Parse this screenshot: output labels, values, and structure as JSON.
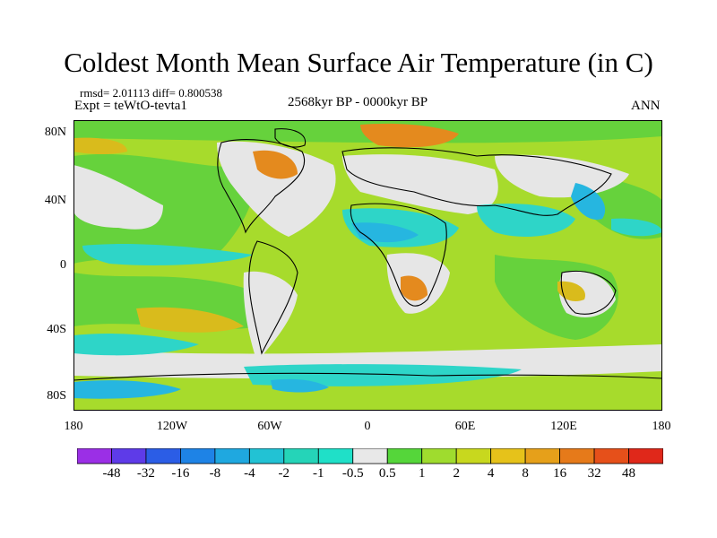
{
  "title": "Coldest Month Mean Surface Air Temperature (in C)",
  "stats": "rmsd= 2.01113 diff= 0.800538",
  "experiment": "Expt = teWtO-tevta1",
  "period": "2568kyr BP - 0000kyr BP",
  "season": "ANN",
  "lat_labels": [
    "80N",
    "40N",
    "0",
    "40S",
    "80S"
  ],
  "lon_labels": [
    "180",
    "120W",
    "60W",
    "0",
    "60E",
    "120E",
    "180"
  ],
  "colorbar": {
    "labels": [
      "-48",
      "-32",
      "-16",
      "-8",
      "-4",
      "-2",
      "-1",
      "-0.5",
      "0.5",
      "1",
      "2",
      "4",
      "8",
      "16",
      "32",
      "48"
    ],
    "colors": [
      "#9b2fe6",
      "#5e3be8",
      "#2b5de6",
      "#1e83e6",
      "#1fa8e0",
      "#22c2d4",
      "#25d4b8",
      "#1fe0c8",
      "#e8e8e8",
      "#55d63a",
      "#9fdc2e",
      "#c8d81e",
      "#e6c21a",
      "#e6a01a",
      "#e67a1a",
      "#e6501a",
      "#e0281a"
    ]
  },
  "legend_colors": {
    "neutral": "#e6e6e6",
    "green": "#66d23c",
    "yellowgreen": "#a7db2c",
    "cyan": "#2ed5c8",
    "lightblue": "#26b6e0",
    "orange": "#e48a1e",
    "ochre": "#d9bb1c"
  }
}
